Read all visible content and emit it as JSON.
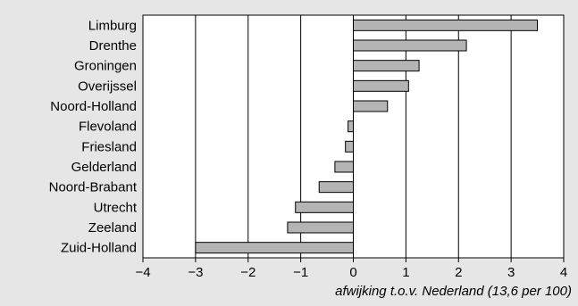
{
  "chart_data": {
    "type": "bar",
    "orientation": "horizontal",
    "categories": [
      "Limburg",
      "Drenthe",
      "Groningen",
      "Overijssel",
      "Noord-Holland",
      "Flevoland",
      "Friesland",
      "Gelderland",
      "Noord-Brabant",
      "Utrecht",
      "Zeeland",
      "Zuid-Holland"
    ],
    "values": [
      3.5,
      2.15,
      1.25,
      1.05,
      0.65,
      -0.1,
      -0.15,
      -0.35,
      -0.65,
      -1.1,
      -1.25,
      -3.0
    ],
    "xlabel": "afwijking t.o.v. Nederland (13,6 per 100)",
    "ylabel": "",
    "xlim": [
      -4,
      4
    ],
    "xticks": [
      -4,
      -3,
      -2,
      -1,
      0,
      1,
      2,
      3,
      4
    ],
    "xtick_labels": [
      "−4",
      "−3",
      "−2",
      "−1",
      "0",
      "1",
      "2",
      "3",
      "4"
    ],
    "grid": "vertical lines at major ticks",
    "colors": {
      "bar": "#b4b4b4",
      "bar_edge": "#000000",
      "plot_bg": "#ffffff",
      "figure_bg": "#e6e6e6"
    }
  }
}
